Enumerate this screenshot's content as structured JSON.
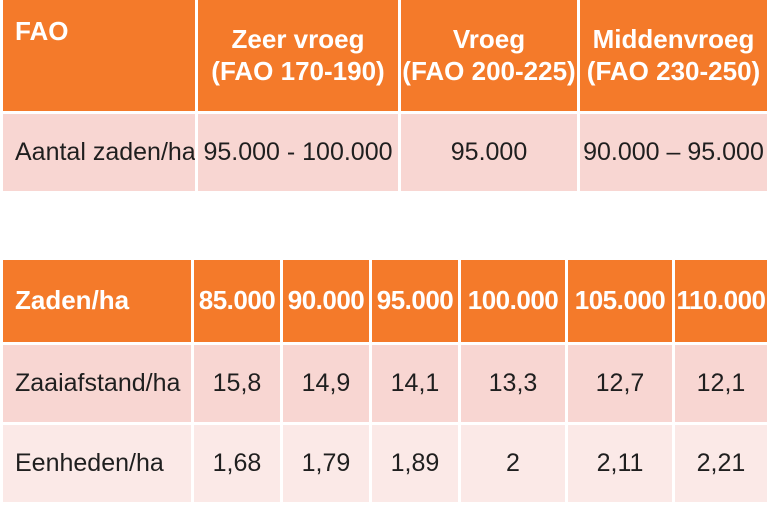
{
  "fao_table": {
    "headers": [
      "FAO",
      "Zeer vroeg",
      "(FAO 170-190)",
      "Vroeg",
      "(FAO 200-225)",
      "Middenvroeg",
      "(FAO 230-250)"
    ],
    "row": {
      "label": "Aantal zaden/ha",
      "values": [
        "95.000 - 100.000",
        "95.000",
        "90.000 – 95.000"
      ]
    }
  },
  "seeds_table": {
    "header_label": "Zaden/ha",
    "columns": [
      "85.000",
      "90.000",
      "95.000",
      "100.000",
      "105.000",
      "110.000"
    ],
    "rows": [
      {
        "label": "Zaaiafstand/ha",
        "values": [
          "15,8",
          "14,9",
          "14,1",
          "13,3",
          "12,7",
          "12,1"
        ]
      },
      {
        "label": "Eenheden/ha",
        "values": [
          "1,68",
          "1,79",
          "1,89",
          "2",
          "2,11",
          "2,21"
        ]
      }
    ]
  },
  "colors": {
    "header_orange": "#f47a2a",
    "row_pink": "#f8d6d2",
    "row_light_pink": "#fbe9e7"
  }
}
